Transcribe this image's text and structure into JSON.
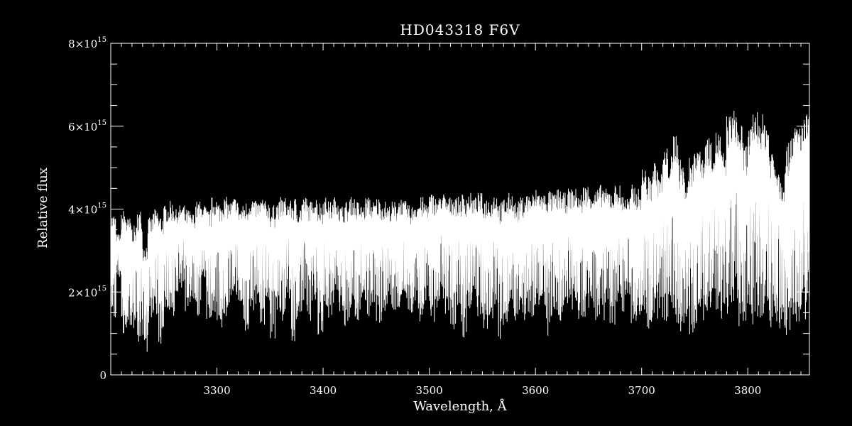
{
  "chart_data": {
    "type": "line",
    "title": "HD043318   F6V",
    "xlabel": "Wavelength, Å",
    "ylabel": "Relative flux",
    "xlim": [
      3200,
      3858
    ],
    "ylim": [
      0,
      8000000000000000.0
    ],
    "x_ticks": [
      3300,
      3400,
      3500,
      3600,
      3700,
      3800
    ],
    "y_ticks": [
      {
        "mantissa": "0",
        "exp": "",
        "value": 0
      },
      {
        "mantissa": "2×10",
        "exp": "15",
        "value": 2000000000000000.0
      },
      {
        "mantissa": "4×10",
        "exp": "15",
        "value": 4000000000000000.0
      },
      {
        "mantissa": "6×10",
        "exp": "15",
        "value": 6000000000000000.0
      },
      {
        "mantissa": "8×10",
        "exp": "15",
        "value": 8000000000000000.0
      }
    ],
    "grid": false,
    "background": "#000000",
    "line_color": "#ffffff",
    "series": [
      {
        "x": [
          3200,
          3205,
          3210,
          3215,
          3220,
          3225,
          3230,
          3235,
          3240,
          3245,
          3250,
          3255,
          3260,
          3265,
          3270,
          3275,
          3280,
          3285,
          3290,
          3295,
          3300,
          3305,
          3310,
          3315,
          3320,
          3325,
          3330,
          3335,
          3340,
          3345,
          3350,
          3355,
          3360,
          3365,
          3370,
          3375,
          3380,
          3385,
          3390,
          3395,
          3400,
          3405,
          3410,
          3415,
          3420,
          3425,
          3430,
          3435,
          3440,
          3445,
          3450,
          3455,
          3460,
          3465,
          3470,
          3475,
          3480,
          3485,
          3490,
          3495,
          3500,
          3505,
          3510,
          3515,
          3520,
          3525,
          3530,
          3535,
          3540,
          3545,
          3550,
          3555,
          3560,
          3565,
          3570,
          3575,
          3580,
          3585,
          3590,
          3595,
          3600,
          3605,
          3610,
          3615,
          3620,
          3625,
          3630,
          3635,
          3640,
          3645,
          3650,
          3655,
          3660,
          3665,
          3670,
          3675,
          3680,
          3685,
          3690,
          3695,
          3700,
          3705,
          3710,
          3715,
          3720,
          3725,
          3730,
          3735,
          3740,
          3745,
          3750,
          3755,
          3760,
          3765,
          3770,
          3775,
          3780,
          3785,
          3790,
          3795,
          3800,
          3805,
          3810,
          3815,
          3820,
          3825,
          3830,
          3835,
          3840,
          3845,
          3850,
          3855
        ],
        "y_max": [
          3.9,
          3.4,
          4.0,
          3.8,
          3.6,
          4.0,
          3.2,
          3.8,
          4.0,
          3.9,
          4.1,
          4.2,
          4.0,
          4.1,
          4.0,
          3.9,
          4.2,
          4.1,
          4.0,
          4.3,
          4.2,
          4.3,
          4.2,
          4.3,
          4.1,
          4.2,
          4.3,
          4.2,
          4.3,
          4.2,
          4.1,
          4.2,
          4.3,
          4.2,
          4.3,
          4.1,
          4.3,
          4.2,
          4.3,
          4.2,
          4.3,
          4.2,
          4.3,
          4.1,
          4.2,
          4.3,
          4.2,
          4.1,
          4.3,
          4.2,
          4.3,
          4.2,
          4.1,
          4.2,
          4.3,
          4.2,
          4.1,
          4.2,
          4.3,
          4.2,
          4.4,
          4.3,
          4.4,
          4.3,
          4.4,
          4.3,
          4.4,
          4.4,
          4.3,
          4.4,
          4.3,
          4.3,
          4.4,
          4.2,
          4.3,
          4.4,
          4.2,
          4.3,
          4.4,
          4.4,
          4.5,
          4.4,
          4.5,
          4.4,
          4.5,
          4.4,
          4.5,
          4.5,
          4.4,
          4.6,
          4.5,
          4.5,
          4.6,
          4.5,
          4.5,
          4.6,
          4.4,
          4.3,
          4.6,
          4.5,
          5.0,
          4.8,
          5.2,
          4.9,
          5.5,
          5.3,
          5.9,
          5.2,
          4.8,
          5.3,
          5.7,
          5.4,
          5.8,
          5.6,
          5.9,
          5.4,
          6.3,
          6.4,
          6.1,
          5.6,
          6.0,
          6.4,
          6.3,
          6.2,
          5.5,
          5.2,
          4.8,
          5.6,
          6.0,
          6.1,
          6.2,
          6.3
        ],
        "y_min": [
          1.3,
          2.3,
          0.9,
          1.0,
          1.1,
          0.8,
          0.5,
          1.2,
          1.4,
          0.7,
          1.6,
          1.2,
          2.0,
          1.9,
          1.5,
          1.8,
          1.4,
          2.3,
          1.3,
          1.5,
          1.1,
          1.4,
          1.6,
          1.9,
          1.4,
          1.0,
          1.5,
          1.7,
          1.2,
          1.6,
          0.7,
          1.5,
          1.3,
          1.8,
          0.8,
          1.4,
          1.6,
          1.3,
          1.8,
          0.9,
          1.6,
          1.3,
          1.8,
          1.5,
          1.1,
          1.6,
          1.3,
          1.8,
          1.4,
          1.6,
          1.2,
          1.4,
          1.7,
          1.1,
          1.6,
          1.8,
          1.3,
          1.6,
          1.2,
          1.7,
          1.2,
          1.6,
          1.8,
          1.4,
          1.1,
          1.5,
          0.9,
          1.5,
          1.7,
          1.4,
          1.1,
          1.3,
          1.6,
          0.8,
          1.2,
          1.6,
          1.0,
          1.3,
          1.4,
          1.3,
          1.5,
          1.5,
          0.8,
          1.4,
          1.3,
          1.4,
          1.5,
          1.6,
          1.2,
          1.4,
          1.6,
          1.3,
          1.3,
          1.6,
          1.2,
          1.7,
          1.5,
          1.8,
          1.2,
          1.4,
          1.4,
          1.1,
          1.4,
          1.3,
          1.2,
          1.5,
          1.1,
          0.9,
          1.4,
          0.8,
          1.0,
          1.3,
          1.2,
          1.5,
          1.4,
          1.2,
          1.3,
          1.6,
          1.1,
          1.0,
          1.2,
          1.4,
          1.3,
          1.5,
          1.1,
          1.2,
          1.0,
          0.8,
          1.2,
          1.1,
          1.3,
          1.8
        ]
      }
    ]
  }
}
